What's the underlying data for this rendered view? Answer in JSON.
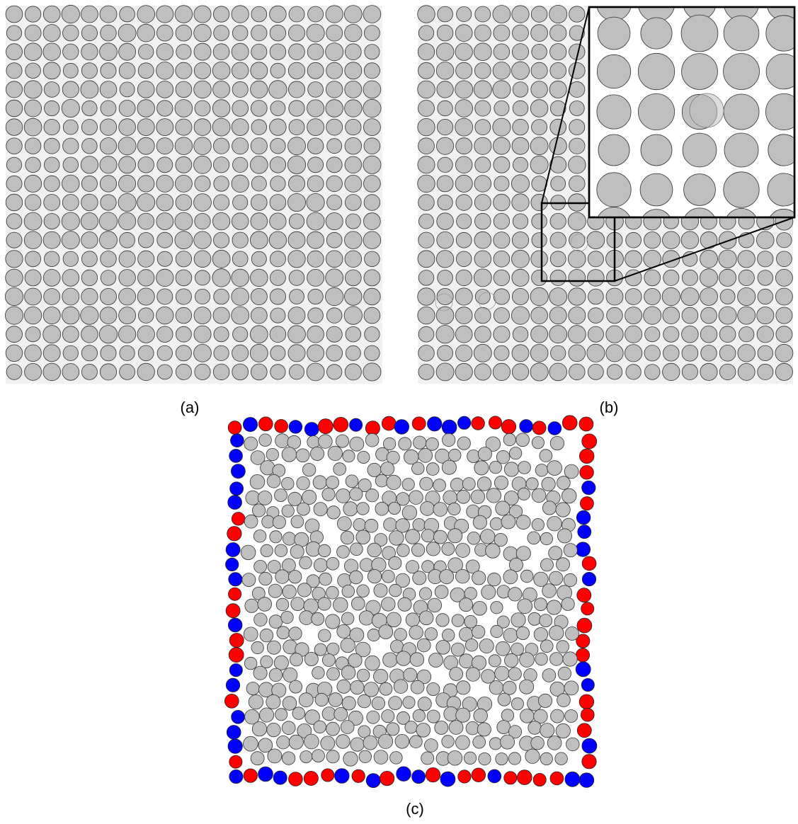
{
  "panels": [
    {
      "id": "a",
      "label": "(a)"
    },
    {
      "id": "b",
      "label": "(b)"
    },
    {
      "id": "c",
      "label": "(c)"
    }
  ],
  "colors": {
    "grain": "#bfbfbf",
    "boundary_red": "#ff0000",
    "boundary_blue": "#0000ff",
    "outline": "#333333"
  },
  "lattice": {
    "rows": 20,
    "cols": 20
  }
}
